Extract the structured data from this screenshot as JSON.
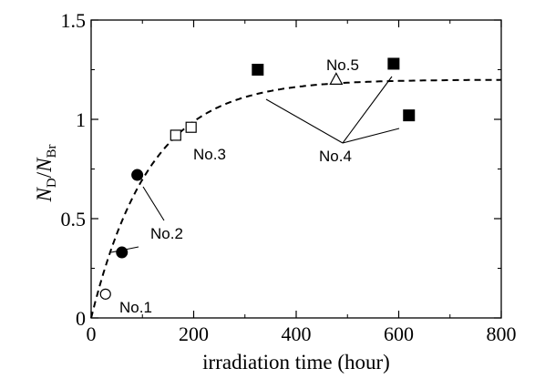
{
  "chart_data": {
    "type": "scatter",
    "xlabel": "irradiation time (hour)",
    "ylabel": {
      "main": "N",
      "sub1": "D",
      "slash": "/",
      "sub2": "Br"
    },
    "xlim": [
      0,
      800
    ],
    "ylim": [
      0,
      1.5
    ],
    "x_ticks": [
      "0",
      "200",
      "400",
      "600",
      "800"
    ],
    "y_ticks": [
      "0",
      "0.5",
      "1",
      "1.5"
    ],
    "grid": false,
    "series": [
      {
        "name": "No.1",
        "marker": "open-circle",
        "points": [
          [
            28,
            0.12
          ]
        ]
      },
      {
        "name": "No.2",
        "marker": "filled-circle",
        "points": [
          [
            60,
            0.33
          ],
          [
            90,
            0.72
          ]
        ]
      },
      {
        "name": "No.3",
        "marker": "open-square",
        "points": [
          [
            165,
            0.92
          ],
          [
            195,
            0.96
          ]
        ]
      },
      {
        "name": "No.4",
        "marker": "filled-square",
        "points": [
          [
            325,
            1.25
          ],
          [
            590,
            1.28
          ],
          [
            620,
            1.02
          ]
        ]
      },
      {
        "name": "No.5",
        "marker": "open-triangle",
        "points": [
          [
            478,
            1.2
          ]
        ]
      }
    ],
    "fit_curve": {
      "style": "dashed",
      "form": "saturation",
      "saturation": 1.2,
      "time_constant": 115
    },
    "annotations": [
      {
        "text": "No.1",
        "series": "No.1"
      },
      {
        "text": "No.2",
        "series": "No.2"
      },
      {
        "text": "No.3",
        "series": "No.3"
      },
      {
        "text": "No.4",
        "series": "No.4"
      },
      {
        "text": "No.5",
        "series": "No.5"
      }
    ]
  }
}
